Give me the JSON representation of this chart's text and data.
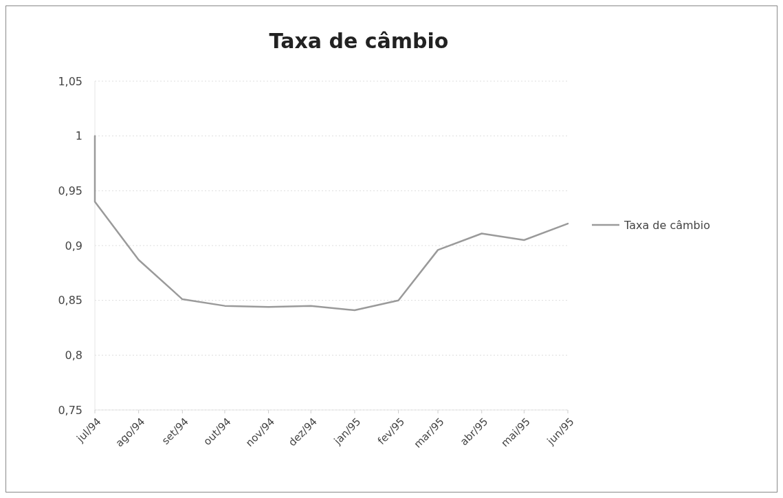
{
  "chart_data": {
    "type": "line",
    "title": "Taxa de câmbio",
    "x": [
      "1994-07-01",
      "1994-07-01",
      "1994-08-01",
      "1994-09-01",
      "1994-10-01",
      "1994-11-01",
      "1994-12-01",
      "1995-01-01",
      "1995-02-01",
      "1995-03-01",
      "1995-04-01",
      "1995-05-01",
      "1995-06-01"
    ],
    "series": [
      {
        "name": "Taxa de câmbio",
        "color": "#9a9a9a",
        "values": [
          1,
          0.94,
          0.887,
          0.851,
          0.845,
          0.844,
          0.845,
          0.841,
          0.85,
          0.896,
          0.911,
          0.905,
          0.92
        ]
      }
    ],
    "xlim": [
      "1994-07-01",
      "1995-06-01"
    ],
    "xticks": [
      {
        "value": "1994-07-01",
        "label": "jul/94"
      },
      {
        "value": "1994-08-01",
        "label": "ago/94"
      },
      {
        "value": "1994-09-01",
        "label": "set/94"
      },
      {
        "value": "1994-10-01",
        "label": "out/94"
      },
      {
        "value": "1994-11-01",
        "label": "nov/94"
      },
      {
        "value": "1994-12-01",
        "label": "dez/94"
      },
      {
        "value": "1995-01-01",
        "label": "jan/95"
      },
      {
        "value": "1995-02-01",
        "label": "fev/95"
      },
      {
        "value": "1995-03-01",
        "label": "mar/95"
      },
      {
        "value": "1995-04-01",
        "label": "abr/95"
      },
      {
        "value": "1995-05-01",
        "label": "mai/95"
      },
      {
        "value": "1995-06-01",
        "label": "jun/95"
      }
    ],
    "ylim": [
      0.75,
      1.05
    ],
    "yticks": [
      {
        "value": 0.75,
        "label": "0,75"
      },
      {
        "value": 0.8,
        "label": "0,8"
      },
      {
        "value": 0.85,
        "label": "0,85"
      },
      {
        "value": 0.9,
        "label": "0,9"
      },
      {
        "value": 0.95,
        "label": "0,95"
      },
      {
        "value": 1,
        "label": "1"
      },
      {
        "value": 1.05,
        "label": "1,05"
      }
    ],
    "grid": "y",
    "legend": "right",
    "marker": "none",
    "line_style": "solid"
  }
}
